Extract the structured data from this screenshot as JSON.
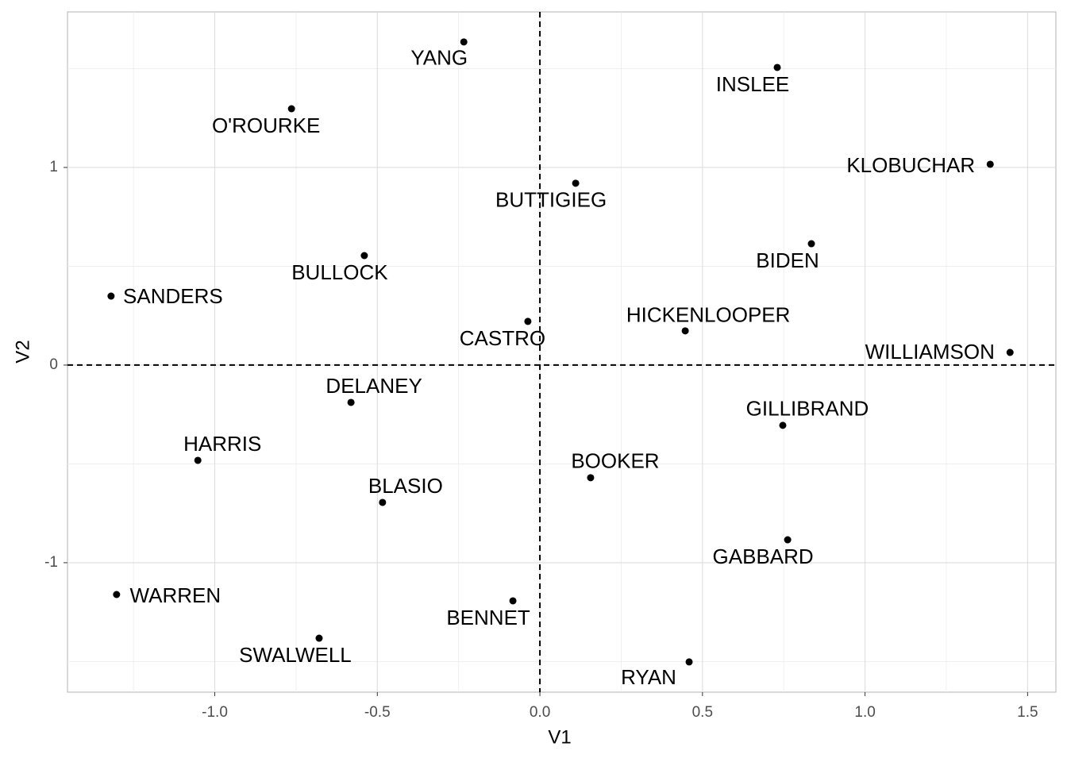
{
  "chart_data": {
    "type": "scatter",
    "x_label": "V1",
    "y_label": "V2",
    "labels": [
      "YANG",
      "INSLEE",
      "O'ROURKE",
      "KLOBUCHAR",
      "BUTTIGIEG",
      "BIDEN",
      "BULLOCK",
      "SANDERS",
      "CASTRO",
      "HICKENLOOPER",
      "WILLIAMSON",
      "DELANEY",
      "GILLIBRAND",
      "HARRIS",
      "BOOKER",
      "BLASIO",
      "GABBARD",
      "WARREN",
      "BENNET",
      "SWALWELL",
      "RYAN"
    ],
    "x": [
      -0.234,
      0.73,
      -0.764,
      1.385,
      0.11,
      0.835,
      -0.54,
      -1.319,
      -0.037,
      0.447,
      1.446,
      -0.581,
      0.747,
      -1.052,
      0.156,
      -0.484,
      0.762,
      -1.302,
      -0.083,
      -0.679,
      0.459
    ],
    "values": [
      1.635,
      1.506,
      1.297,
      1.016,
      0.92,
      0.614,
      0.554,
      0.349,
      0.221,
      0.173,
      0.064,
      -0.189,
      -0.305,
      -0.482,
      -0.57,
      -0.695,
      -0.884,
      -1.161,
      -1.193,
      -1.382,
      -1.502
    ],
    "color": "#000000",
    "xlim": [
      -1.453,
      1.587
    ],
    "ylim": [
      -1.655,
      1.787
    ],
    "xticks": [
      {
        "value": -1,
        "label": "-1.0"
      },
      -0.5,
      {
        "value": 0,
        "label": "0.0"
      },
      0.5,
      {
        "value": 1,
        "label": "1.0"
      },
      1.5
    ],
    "yticks": [
      -1,
      0,
      1
    ],
    "hline": 0,
    "vline": 0,
    "grid": true
  }
}
